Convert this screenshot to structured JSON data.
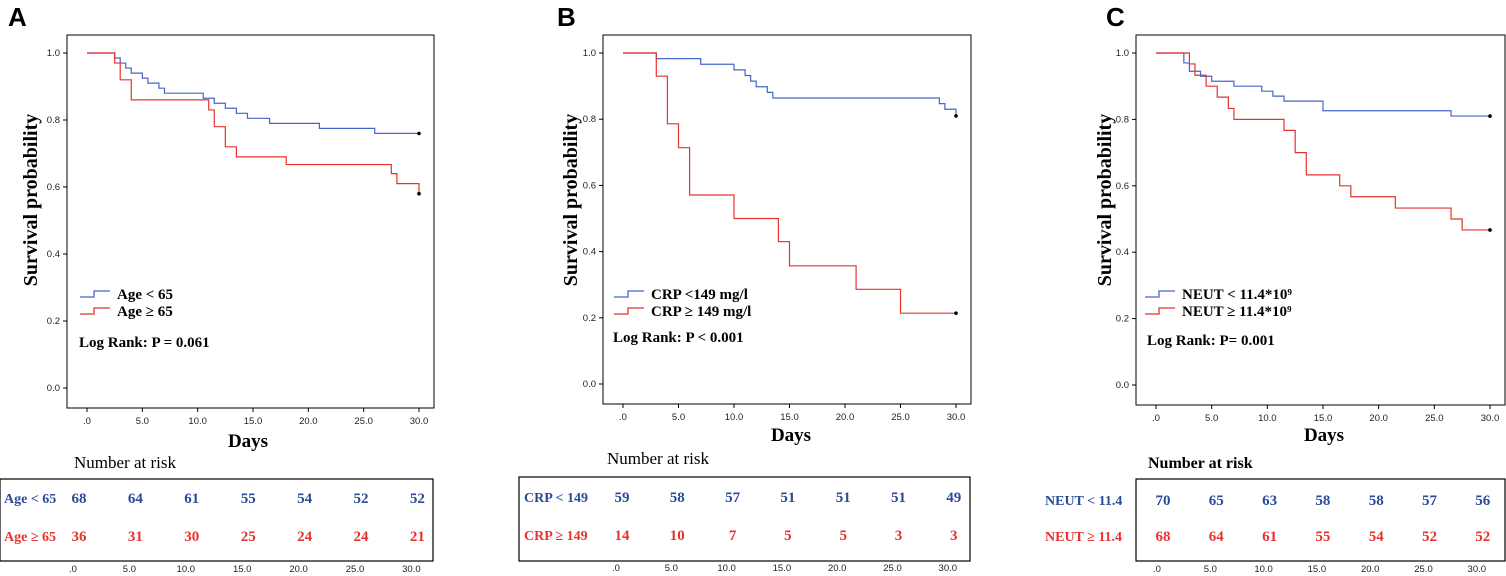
{
  "colors": {
    "blue": "#4566c9",
    "red": "#e8322e",
    "blue_text": "#2a4a9a",
    "red_text": "#e8322e"
  },
  "chart_data": [
    {
      "panel": "A",
      "type": "line",
      "xlabel": "Days",
      "ylabel": "Survival probability",
      "x_ticks": [
        ".0",
        "5.0",
        "10.0",
        "15.0",
        "20.0",
        "25.0",
        "30.0"
      ],
      "y_ticks": [
        "0.0",
        "0.2",
        "0.4",
        "0.6",
        "0.8",
        "1.0"
      ],
      "xlim": [
        0,
        30
      ],
      "ylim": [
        0,
        1
      ],
      "legend": [
        "Age < 65",
        "Age ≥ 65"
      ],
      "stat": "Log Rank: P = 0.061",
      "series": [
        {
          "name": "Age < 65",
          "color": "blue",
          "x": [
            0,
            2,
            2.5,
            3,
            3.5,
            4,
            5,
            5.5,
            6.5,
            7,
            10.5,
            11.5,
            12.5,
            13.5,
            14.5,
            16.5,
            21,
            26,
            30
          ],
          "y": [
            1.0,
            1.0,
            0.985,
            0.97,
            0.955,
            0.94,
            0.925,
            0.91,
            0.895,
            0.88,
            0.865,
            0.85,
            0.835,
            0.82,
            0.805,
            0.79,
            0.775,
            0.76,
            0.76
          ]
        },
        {
          "name": "Age ≥ 65",
          "color": "red",
          "x": [
            0,
            2,
            2.5,
            3,
            4,
            11,
            11.5,
            12.5,
            13.5,
            18,
            27.5,
            28,
            30
          ],
          "y": [
            1.0,
            1.0,
            0.97,
            0.92,
            0.86,
            0.83,
            0.78,
            0.72,
            0.69,
            0.667,
            0.64,
            0.61,
            0.58
          ]
        }
      ],
      "risk": {
        "title": "Number at risk",
        "groups": [
          {
            "label": "Age < 65",
            "color": "blue_text",
            "values": [
              "68",
              "64",
              "61",
              "55",
              "54",
              "52",
              "52"
            ]
          },
          {
            "label": "Age ≥ 65",
            "color": "red_text",
            "values": [
              "36",
              "31",
              "30",
              "25",
              "24",
              "24",
              "21"
            ]
          }
        ],
        "x_ticks": [
          ".0",
          "5.0",
          "10.0",
          "15.0",
          "20.0",
          "25.0",
          "30.0"
        ]
      }
    },
    {
      "panel": "B",
      "type": "line",
      "xlabel": "Days",
      "ylabel": "Survival probability",
      "x_ticks": [
        ".0",
        "5.0",
        "10.0",
        "15.0",
        "20.0",
        "25.0",
        "30.0"
      ],
      "y_ticks": [
        "0.0",
        "0.2",
        "0.4",
        "0.6",
        "0.8",
        "1.0"
      ],
      "xlim": [
        0,
        30
      ],
      "ylim": [
        0,
        1
      ],
      "legend": [
        "CRP <149 mg/l",
        "CRP ≥ 149 mg/l"
      ],
      "stat": "Log Rank:  P < 0.001",
      "series": [
        {
          "name": "CRP <149 mg/l",
          "color": "blue",
          "x": [
            0,
            3,
            7,
            10,
            11,
            11.5,
            12,
            13,
            13.5,
            14,
            15,
            28.5,
            29,
            30
          ],
          "y": [
            1.0,
            0.983,
            0.966,
            0.949,
            0.932,
            0.915,
            0.898,
            0.881,
            0.864,
            0.864,
            0.864,
            0.847,
            0.83,
            0.81
          ]
        },
        {
          "name": "CRP ≥ 149 mg/l",
          "color": "red",
          "x": [
            0,
            3,
            4,
            5,
            6,
            10,
            14,
            15,
            21,
            25,
            30
          ],
          "y": [
            1.0,
            0.93,
            0.786,
            0.714,
            0.571,
            0.5,
            0.43,
            0.357,
            0.286,
            0.214,
            0.214
          ]
        }
      ],
      "risk": {
        "title": "Number at risk",
        "groups": [
          {
            "label": "CRP < 149",
            "color": "blue_text",
            "values": [
              "59",
              "58",
              "57",
              "51",
              "51",
              "51",
              "49"
            ]
          },
          {
            "label": "CRP ≥ 149",
            "color": "red_text",
            "values": [
              "14",
              "10",
              "7",
              "5",
              "5",
              "3",
              "3"
            ]
          }
        ],
        "x_ticks": [
          ".0",
          "5.0",
          "10.0",
          "15.0",
          "20.0",
          "25.0",
          "30.0"
        ]
      }
    },
    {
      "panel": "C",
      "type": "line",
      "xlabel": "Days",
      "ylabel": "Survival probability",
      "x_ticks": [
        ".0",
        "5.0",
        "10.0",
        "15.0",
        "20.0",
        "25.0",
        "30.0"
      ],
      "y_ticks": [
        "0.0",
        "0.2",
        "0.4",
        "0.6",
        "0.8",
        "1.0"
      ],
      "xlim": [
        0,
        30
      ],
      "ylim": [
        0,
        1
      ],
      "legend": [
        "NEUT < 11.4*10⁹",
        "NEUT ≥ 11.4*10⁹"
      ],
      "stat": "Log Rank:  P= 0.001",
      "series": [
        {
          "name": "NEUT < 11.4*10⁹",
          "color": "blue",
          "x": [
            0,
            2,
            2.5,
            3,
            4,
            5,
            7,
            9.5,
            10.5,
            11.5,
            15,
            26.5,
            30
          ],
          "y": [
            1.0,
            1.0,
            0.97,
            0.945,
            0.93,
            0.915,
            0.9,
            0.885,
            0.87,
            0.855,
            0.826,
            0.81,
            0.81
          ]
        },
        {
          "name": "NEUT ≥ 11.4*10⁹",
          "color": "red",
          "x": [
            0,
            3,
            3.5,
            4.5,
            5.5,
            6.5,
            7,
            11.5,
            12.5,
            13.5,
            16.5,
            17.5,
            19,
            21.5,
            26.5,
            27.5,
            28.5,
            30
          ],
          "y": [
            1.0,
            0.967,
            0.933,
            0.9,
            0.867,
            0.833,
            0.8,
            0.767,
            0.7,
            0.633,
            0.6,
            0.567,
            0.567,
            0.533,
            0.5,
            0.467,
            0.467,
            0.467
          ]
        }
      ],
      "risk": {
        "title": "Number at risk",
        "groups": [
          {
            "label": "NEUT < 11.4",
            "color": "blue_text",
            "values": [
              "70",
              "65",
              "63",
              "58",
              "58",
              "57",
              "56"
            ]
          },
          {
            "label": "NEUT ≥ 11.4",
            "color": "red_text",
            "values": [
              "68",
              "64",
              "61",
              "55",
              "54",
              "52",
              "52"
            ]
          }
        ],
        "x_ticks": [
          ".0",
          "5.0",
          "10.0",
          "15.0",
          "20.0",
          "25.0",
          "30.0"
        ]
      }
    }
  ]
}
